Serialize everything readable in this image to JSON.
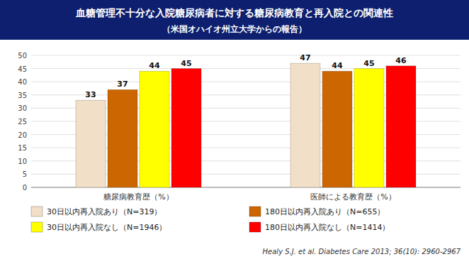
{
  "chart_data": {
    "type": "bar",
    "title": "血糖管理不十分な入院糖尿病者に対する糖尿病教育と再入院との関連性",
    "subtitle": "（米国オハイオ州立大学からの報告）",
    "categories": [
      "糖尿病教育歴（%）",
      "医師による教育歴（%）"
    ],
    "series": [
      {
        "name": "30日以内再入院あり（N=319）",
        "color": "#f2dfc8",
        "values": [
          33,
          47
        ]
      },
      {
        "name": "180日以内再入院あり（N=655）",
        "color": "#cc6600",
        "values": [
          37,
          44
        ]
      },
      {
        "name": "30日以内再入院なし（N=1946）",
        "color": "#ffff00",
        "values": [
          44,
          45
        ]
      },
      {
        "name": "180日以内再入院なし（N=1414）",
        "color": "#ff0000",
        "values": [
          45,
          46
        ]
      }
    ],
    "ylim": [
      0,
      50
    ],
    "yticks": [
      0,
      5,
      10,
      15,
      20,
      25,
      30,
      35,
      40,
      45,
      50
    ],
    "grid": true,
    "data_labels": true,
    "annotations": [
      "Healy S.J. et al. Diabetes Care 2013; 36(10): 2960-2967"
    ]
  }
}
